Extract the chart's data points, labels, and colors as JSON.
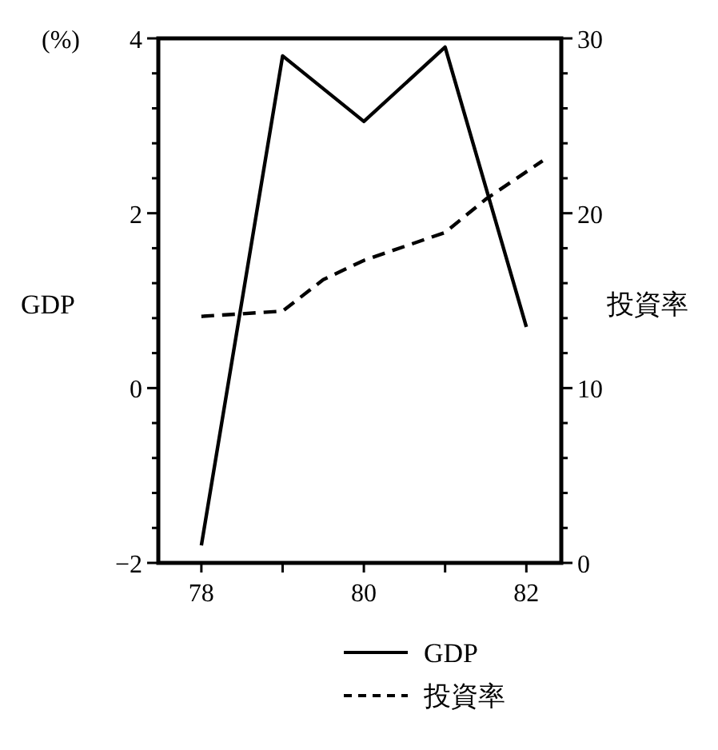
{
  "chart_data": {
    "type": "line",
    "ylabel": "GDP",
    "y2label": "投資率",
    "annotations": [
      "(%)"
    ],
    "x": [
      78,
      79,
      80,
      81,
      82
    ],
    "xlim": [
      77.47,
      82.43
    ],
    "xticks": [
      78,
      {
        "value": 79,
        "label": null
      },
      80,
      {
        "value": 81,
        "label": null
      },
      82
    ],
    "ylim": [
      -2,
      4
    ],
    "yticks": [
      -2,
      {
        "value": -1.6,
        "label": null
      },
      {
        "value": -1.2,
        "label": null
      },
      {
        "value": -0.8,
        "label": null
      },
      {
        "value": -0.4,
        "label": null
      },
      0,
      {
        "value": 0.4,
        "label": null
      },
      {
        "value": 0.8,
        "label": null
      },
      {
        "value": 1.2,
        "label": null
      },
      {
        "value": 1.6,
        "label": null
      },
      2,
      {
        "value": 2.4,
        "label": null
      },
      {
        "value": 2.8,
        "label": null
      },
      {
        "value": 3.2,
        "label": null
      },
      {
        "value": 3.6,
        "label": null
      },
      4
    ],
    "y2lim": [
      0,
      30
    ],
    "y2ticks": [
      0,
      {
        "value": 2,
        "label": null
      },
      {
        "value": 4,
        "label": null
      },
      {
        "value": 6,
        "label": null
      },
      {
        "value": 8,
        "label": null
      },
      10,
      {
        "value": 12,
        "label": null
      },
      {
        "value": 14,
        "label": null
      },
      {
        "value": 16,
        "label": null
      },
      {
        "value": 18,
        "label": null
      },
      20,
      {
        "value": 22,
        "label": null
      },
      {
        "value": 24,
        "label": null
      },
      {
        "value": 26,
        "label": null
      },
      {
        "value": 28,
        "label": null
      },
      30
    ],
    "legend": "bottom right",
    "series": [
      {
        "name": "GDP",
        "color": "#000000",
        "line_style": "solid",
        "values": [
          -1.8,
          3.8,
          3.05,
          3.9,
          0.7
        ]
      },
      {
        "name": "投資率",
        "color": "#000000",
        "line_style": "dashed",
        "axis": "y2",
        "x": [
          78,
          79,
          79.5,
          80,
          81,
          81.5,
          82.2
        ],
        "values": [
          14.1,
          14.4,
          16.2,
          17.3,
          18.9,
          20.8,
          23.0
        ]
      }
    ]
  }
}
